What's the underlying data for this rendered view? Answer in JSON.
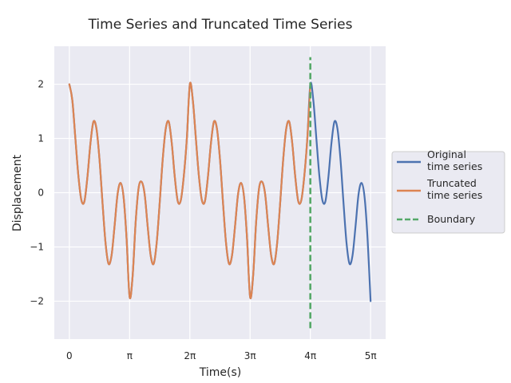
{
  "chart_data": {
    "type": "line",
    "title": "Time Series and Truncated Time Series",
    "xlabel": "Time(s)",
    "ylabel": "Displacement",
    "x_unit": "pi",
    "xlim": [
      -0.25,
      5.25
    ],
    "ylim": [
      -2.7,
      2.7
    ],
    "xticks": [
      0,
      1,
      2,
      3,
      4,
      5
    ],
    "xtick_labels": [
      "0",
      "π",
      "2π",
      "3π",
      "4π",
      "5π"
    ],
    "yticks": [
      -2,
      -1,
      0,
      1,
      2
    ],
    "ytick_labels": [
      "−2",
      "−1",
      "0",
      "1",
      "2"
    ],
    "grid": true,
    "legend_position": "right, outside",
    "series": [
      {
        "name": "Original\ntime series",
        "color": "#4c72b0",
        "x": [
          0,
          0.05,
          0.1,
          0.15,
          0.2,
          0.25,
          0.3,
          0.35,
          0.4,
          0.45,
          0.5,
          0.55,
          0.6,
          0.65,
          0.7,
          0.75,
          0.8,
          0.85,
          0.9,
          0.95,
          1,
          1.05,
          1.1,
          1.15,
          1.2,
          1.25,
          1.3,
          1.35,
          1.4,
          1.45,
          1.5,
          1.55,
          1.6,
          1.65,
          1.7,
          1.75,
          1.8,
          1.85,
          1.9,
          1.95,
          2,
          2.05,
          2.1,
          2.15,
          2.2,
          2.25,
          2.3,
          2.35,
          2.4,
          2.45,
          2.5,
          2.55,
          2.6,
          2.65,
          2.7,
          2.75,
          2.8,
          2.85,
          2.9,
          2.95,
          3,
          3.05,
          3.1,
          3.15,
          3.2,
          3.25,
          3.3,
          3.35,
          3.4,
          3.45,
          3.5,
          3.55,
          3.6,
          3.65,
          3.7,
          3.75,
          3.8,
          3.85,
          3.9,
          3.95,
          4,
          4.05,
          4.1,
          4.15,
          4.2,
          4.25,
          4.3,
          4.35,
          4.4,
          4.45,
          4.5,
          4.55,
          4.6,
          4.65,
          4.7,
          4.75,
          4.8,
          4.85,
          4.9,
          4.95,
          5
        ],
        "y": [
          2,
          1.7,
          1,
          0.31,
          -0.14,
          -0.16,
          0.29,
          0.91,
          1.31,
          1.18,
          0.62,
          -0.18,
          -0.92,
          -1.31,
          -1.16,
          -0.62,
          -0.03,
          0.18,
          -0.08,
          -0.85,
          -1.92,
          -1.54,
          -0.55,
          0.09,
          0.2,
          -0.03,
          -0.62,
          -1.16,
          -1.31,
          -0.92,
          -0.18,
          0.62,
          1.18,
          1.31,
          0.91,
          0.29,
          -0.16,
          -0.14,
          0.31,
          1,
          2,
          1.7,
          1,
          0.31,
          -0.14,
          -0.16,
          0.29,
          0.91,
          1.31,
          1.18,
          0.62,
          -0.18,
          -0.92,
          -1.31,
          -1.16,
          -0.62,
          -0.03,
          0.18,
          -0.08,
          -0.85,
          -1.92,
          -1.54,
          -0.55,
          0.09,
          0.2,
          -0.03,
          -0.62,
          -1.16,
          -1.31,
          -0.92,
          -0.18,
          0.62,
          1.18,
          1.31,
          0.91,
          0.29,
          -0.16,
          -0.14,
          0.31,
          1,
          2,
          1.7,
          1,
          0.31,
          -0.14,
          -0.16,
          0.29,
          0.91,
          1.31,
          1.18,
          0.62,
          -0.18,
          -0.92,
          -1.31,
          -1.16,
          -0.62,
          -0.03,
          0.18,
          -0.08,
          -0.85,
          -2
        ]
      },
      {
        "name": "Truncated\ntime series",
        "color": "#dd8452",
        "x": [
          0,
          0.05,
          0.1,
          0.15,
          0.2,
          0.25,
          0.3,
          0.35,
          0.4,
          0.45,
          0.5,
          0.55,
          0.6,
          0.65,
          0.7,
          0.75,
          0.8,
          0.85,
          0.9,
          0.95,
          1,
          1.05,
          1.1,
          1.15,
          1.2,
          1.25,
          1.3,
          1.35,
          1.4,
          1.45,
          1.5,
          1.55,
          1.6,
          1.65,
          1.7,
          1.75,
          1.8,
          1.85,
          1.9,
          1.95,
          2,
          2.05,
          2.1,
          2.15,
          2.2,
          2.25,
          2.3,
          2.35,
          2.4,
          2.45,
          2.5,
          2.55,
          2.6,
          2.65,
          2.7,
          2.75,
          2.8,
          2.85,
          2.9,
          2.95,
          3,
          3.05,
          3.1,
          3.15,
          3.2,
          3.25,
          3.3,
          3.35,
          3.4,
          3.45,
          3.5,
          3.55,
          3.6,
          3.65,
          3.7,
          3.75,
          3.8,
          3.85,
          3.9,
          3.95,
          4
        ],
        "y": [
          2,
          1.7,
          1,
          0.31,
          -0.14,
          -0.16,
          0.29,
          0.91,
          1.31,
          1.18,
          0.62,
          -0.18,
          -0.92,
          -1.31,
          -1.16,
          -0.62,
          -0.03,
          0.18,
          -0.08,
          -0.85,
          -1.92,
          -1.54,
          -0.55,
          0.09,
          0.2,
          -0.03,
          -0.62,
          -1.16,
          -1.31,
          -0.92,
          -0.18,
          0.62,
          1.18,
          1.31,
          0.91,
          0.29,
          -0.16,
          -0.14,
          0.31,
          1,
          2,
          1.7,
          1,
          0.31,
          -0.14,
          -0.16,
          0.29,
          0.91,
          1.31,
          1.18,
          0.62,
          -0.18,
          -0.92,
          -1.31,
          -1.16,
          -0.62,
          -0.03,
          0.18,
          -0.08,
          -0.85,
          -1.92,
          -1.54,
          -0.55,
          0.09,
          0.2,
          -0.03,
          -0.62,
          -1.16,
          -1.31,
          -0.92,
          -0.18,
          0.62,
          1.18,
          1.31,
          0.91,
          0.29,
          -0.16,
          -0.14,
          0.31,
          1,
          2
        ]
      },
      {
        "name": "Boundary",
        "color": "#55a868",
        "style": "dashed",
        "x": [
          4,
          4
        ],
        "y": [
          -2.5,
          2.5
        ]
      }
    ]
  }
}
